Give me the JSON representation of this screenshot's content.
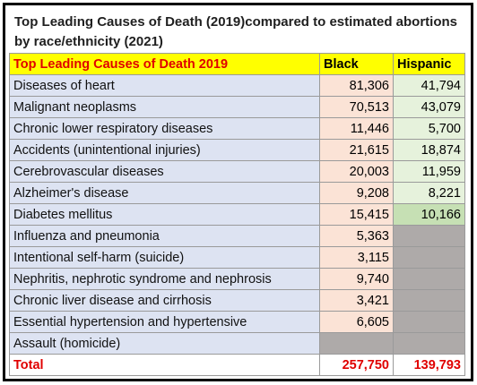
{
  "title": "Top Leading Causes of Death (2019)compared to estimated abortions by race/ethnicity (2021)",
  "chart_data": {
    "type": "table",
    "title": "Top Leading Causes of Death (2019)compared to estimated abortions by race/ethnicity (2021)",
    "columns": [
      "Top Leading Causes of Death 2019",
      "Black",
      "Hispanic"
    ],
    "rows": [
      {
        "cause": "Diseases of heart",
        "black": "81,306",
        "hispanic": "41,794"
      },
      {
        "cause": "Malignant neoplasms",
        "black": "70,513",
        "hispanic": "43,079"
      },
      {
        "cause": "Chronic lower respiratory diseases",
        "black": "11,446",
        "hispanic": "5,700"
      },
      {
        "cause": "Accidents (unintentional injuries)",
        "black": "21,615",
        "hispanic": "18,874"
      },
      {
        "cause": "Cerebrovascular diseases",
        "black": "20,003",
        "hispanic": "11,959"
      },
      {
        "cause": "Alzheimer's disease",
        "black": "9,208",
        "hispanic": "8,221"
      },
      {
        "cause": "Diabetes mellitus",
        "black": "15,415",
        "hispanic": "10,166"
      },
      {
        "cause": "Influenza and pneumonia",
        "black": "5,363",
        "hispanic": null
      },
      {
        "cause": "Intentional self-harm (suicide)",
        "black": "3,115",
        "hispanic": null
      },
      {
        "cause": "Nephritis, nephrotic syndrome and nephrosis",
        "black": "9,740",
        "hispanic": null
      },
      {
        "cause": "Chronic liver disease and cirrhosis",
        "black": "3,421",
        "hispanic": null
      },
      {
        "cause": "Essential hypertension and hypertensive",
        "black": "6,605",
        "hispanic": null
      },
      {
        "cause": "Assault (homicide)",
        "black": null,
        "hispanic": null
      }
    ],
    "total": {
      "label": "Total",
      "black": "257,750",
      "hispanic": "139,793"
    }
  },
  "colors": {
    "header_bg": "#ffff00",
    "header_red_text": "#e00000",
    "cause_bg": "#dde3f2",
    "black_col_bg": "#fbe3d6",
    "hispanic_col_bg": "#e6f2dc",
    "hispanic_highlight_bg": "#c6e0b4",
    "empty_cell_bg": "#aeaaa9",
    "total_text": "#e00000"
  }
}
